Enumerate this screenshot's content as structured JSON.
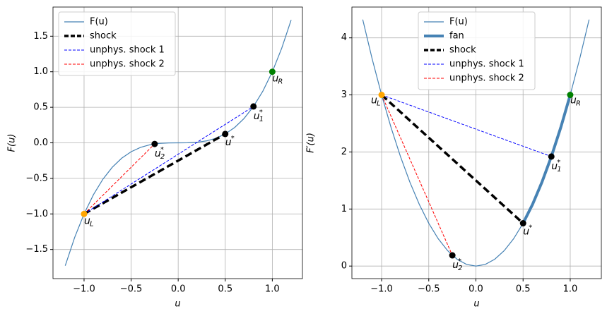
{
  "chart_data": [
    {
      "type": "line",
      "xlabel": "u",
      "ylabel": "F(u)",
      "xlim": [
        -1.33,
        1.32
      ],
      "ylim": [
        -1.91,
        1.91
      ],
      "xticks": [
        {
          "value": -1,
          "label": "−1.0"
        },
        {
          "value": -0.5,
          "label": "−0.5"
        },
        {
          "value": 0,
          "label": "0.0"
        },
        {
          "value": 0.5,
          "label": "0.5"
        },
        {
          "value": 1,
          "label": "1.0"
        }
      ],
      "yticks": [
        {
          "value": -1.5,
          "label": "−1.5"
        },
        {
          "value": -1,
          "label": "−1.0"
        },
        {
          "value": -0.5,
          "label": "−0.5"
        },
        {
          "value": 0,
          "label": "0.0"
        },
        {
          "value": 0.5,
          "label": "0.5"
        },
        {
          "value": 1,
          "label": "1.0"
        },
        {
          "value": 1.5,
          "label": "1.5"
        }
      ],
      "grid": true,
      "legend": "upper left",
      "series": [
        {
          "name": "F(u)",
          "color": "#4682b4",
          "width": 1.2,
          "dash": "none",
          "x": [
            -1.2,
            -1.1,
            -1,
            -0.9,
            -0.8,
            -0.7,
            -0.6,
            -0.5,
            -0.4,
            -0.3,
            -0.2,
            -0.1,
            0,
            0.1,
            0.2,
            0.3,
            0.4,
            0.5,
            0.6,
            0.7,
            0.8,
            0.9,
            1,
            1.1,
            1.2
          ],
          "values": [
            -1.728,
            -1.331,
            -1,
            -0.729,
            -0.512,
            -0.343,
            -0.216,
            -0.125,
            -0.064,
            -0.027,
            -0.008,
            -0.001,
            0,
            0.001,
            0.008,
            0.027,
            0.064,
            0.125,
            0.216,
            0.343,
            0.512,
            0.729,
            1,
            1.331,
            1.728
          ]
        },
        {
          "name": "shock",
          "color": "#000000",
          "width": 3.5,
          "dash": "10,5",
          "x": [
            -1,
            0.5
          ],
          "values": [
            -1,
            0.125
          ]
        },
        {
          "name": "unphys. shock 1",
          "color": "#0000ff",
          "width": 1,
          "dash": "4,2",
          "x": [
            -1,
            0.8
          ],
          "values": [
            -1,
            0.512
          ]
        },
        {
          "name": "unphys. shock 2",
          "color": "#ff0000",
          "width": 1,
          "dash": "4,2",
          "x": [
            -1,
            -0.25
          ],
          "values": [
            -1,
            -0.015625
          ]
        }
      ],
      "points": [
        {
          "x": -1,
          "y": -1,
          "color": "#ffa500",
          "label": {
            "base": "u",
            "sub": "L"
          }
        },
        {
          "x": 1,
          "y": 1,
          "color": "#008000",
          "label": {
            "base": "u",
            "sub": "R"
          }
        },
        {
          "x": -0.25,
          "y": -0.015625,
          "color": "#000000",
          "label": {
            "base": "u",
            "sub": "2",
            "sup": "*"
          }
        },
        {
          "x": 0.5,
          "y": 0.125,
          "color": "#000000",
          "label": {
            "base": "u",
            "sup": "*"
          }
        },
        {
          "x": 0.8,
          "y": 0.512,
          "color": "#000000",
          "label": {
            "base": "u",
            "sub": "1",
            "sup": "*"
          }
        }
      ]
    },
    {
      "type": "line",
      "xlabel": "u",
      "ylabel": "F′(u)",
      "xlim": [
        -1.315,
        1.33
      ],
      "ylim": [
        -0.22,
        4.54
      ],
      "xticks": [
        {
          "value": -1,
          "label": "−1.0"
        },
        {
          "value": -0.5,
          "label": "−0.5"
        },
        {
          "value": 0,
          "label": "0.0"
        },
        {
          "value": 0.5,
          "label": "0.5"
        },
        {
          "value": 1,
          "label": "1.0"
        }
      ],
      "yticks": [
        0,
        1,
        2,
        3,
        4
      ],
      "grid": true,
      "legend": "upper center",
      "series": [
        {
          "name": "F(u)",
          "color": "#4682b4",
          "width": 1.2,
          "dash": "none",
          "x": [
            -1.2,
            -1.1,
            -1,
            -0.9,
            -0.8,
            -0.7,
            -0.6,
            -0.5,
            -0.4,
            -0.3,
            -0.2,
            -0.1,
            0,
            0.1,
            0.2,
            0.3,
            0.4,
            0.5,
            0.6,
            0.7,
            0.8,
            0.9,
            1,
            1.1,
            1.2
          ],
          "values": [
            4.32,
            3.63,
            3,
            2.43,
            1.92,
            1.47,
            1.08,
            0.75,
            0.48,
            0.27,
            0.12,
            0.03,
            0,
            0.03,
            0.12,
            0.27,
            0.48,
            0.75,
            1.08,
            1.47,
            1.92,
            2.43,
            3,
            3.63,
            4.32
          ]
        },
        {
          "name": "fan",
          "color": "#4682b4",
          "width": 4,
          "dash": "none",
          "x": [
            0.5,
            0.6,
            0.7,
            0.8,
            0.9,
            1
          ],
          "values": [
            0.75,
            1.08,
            1.47,
            1.92,
            2.43,
            3
          ]
        },
        {
          "name": "shock",
          "color": "#000000",
          "width": 3.5,
          "dash": "10,5",
          "x": [
            -1,
            0.5
          ],
          "values": [
            3,
            0.75
          ]
        },
        {
          "name": "unphys. shock 1",
          "color": "#0000ff",
          "width": 1,
          "dash": "4,2",
          "x": [
            -1,
            0.8
          ],
          "values": [
            3,
            1.92
          ]
        },
        {
          "name": "unphys. shock 2",
          "color": "#ff0000",
          "width": 1,
          "dash": "4,2",
          "x": [
            -1,
            -0.25
          ],
          "values": [
            3,
            0.1875
          ]
        }
      ],
      "points": [
        {
          "x": -1,
          "y": 3,
          "color": "#ffa500",
          "label": {
            "base": "u",
            "sub": "L"
          }
        },
        {
          "x": 1,
          "y": 3,
          "color": "#008000",
          "label": {
            "base": "u",
            "sub": "R"
          }
        },
        {
          "x": 0.8,
          "y": 1.92,
          "color": "#000000",
          "label": {
            "base": "u",
            "sub": "1",
            "sup": "*"
          }
        },
        {
          "x": 0.5,
          "y": 0.75,
          "color": "#000000",
          "label": {
            "base": "u",
            "sup": "*"
          }
        },
        {
          "x": -0.25,
          "y": 0.1875,
          "color": "#000000",
          "label": {
            "base": "u",
            "sub": "2",
            "sup": "*"
          }
        }
      ]
    }
  ]
}
